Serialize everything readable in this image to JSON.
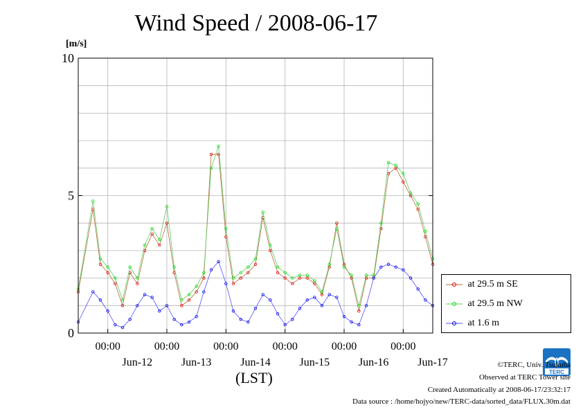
{
  "title": "Wind Speed / 2008-06-17",
  "unit": "[m/s]",
  "xaxis_label": "(LST)",
  "credits": {
    "copyright": "©TERC, Univ. Tsukuba",
    "site": "Observed at TERC Tower site",
    "created": "Created Automatically at 2008-06-17/23:32:17",
    "source": "Data source : /home/hojyo/new/TERC-data/sorted_data/FLUX.30m.dat"
  },
  "logo_text": "TERC",
  "chart_data": {
    "type": "line",
    "title": "Wind Speed / 2008-06-17",
    "ylabel": "[m/s]",
    "xlabel": "(LST)",
    "ylim": [
      0,
      10
    ],
    "yticks": [
      "0",
      "5",
      "10"
    ],
    "xlim_hours": [
      -12,
      132
    ],
    "time_labels": [
      "00:00",
      "00:00",
      "00:00",
      "00:00",
      "00:00",
      "00:00"
    ],
    "day_labels": [
      "Jun-12",
      "Jun-13",
      "Jun-14",
      "Jun-15",
      "Jun-16",
      "Jun-17"
    ],
    "grid": true,
    "legend_position": "bottom-right",
    "series": [
      {
        "name": "at 29.5 m SE",
        "color": "#e00000",
        "line_color": "#b06a3a",
        "x_hours": [
          -12,
          -6,
          -3,
          0,
          3,
          6,
          9,
          12,
          15,
          18,
          21,
          24,
          27,
          30,
          33,
          36,
          39,
          42,
          45,
          48,
          51,
          54,
          57,
          60,
          63,
          66,
          69,
          72,
          75,
          78,
          81,
          84,
          87,
          90,
          93,
          96,
          99,
          102,
          105,
          108,
          111,
          114,
          117,
          120,
          123,
          126,
          129,
          132
        ],
        "values": [
          1.5,
          4.5,
          2.5,
          2.2,
          1.8,
          1.0,
          2.2,
          1.8,
          3.0,
          3.6,
          3.2,
          4.0,
          2.2,
          1.0,
          1.2,
          1.5,
          2.0,
          6.5,
          6.5,
          3.5,
          1.8,
          2.0,
          2.2,
          2.5,
          4.2,
          3.0,
          2.2,
          2.0,
          1.8,
          2.0,
          2.0,
          1.8,
          1.4,
          2.4,
          4.0,
          2.5,
          2.0,
          0.8,
          2.0,
          2.0,
          3.8,
          5.8,
          6.0,
          5.5,
          5.0,
          4.5,
          3.5,
          2.5
        ]
      },
      {
        "name": "at 29.5 m NW",
        "color": "#00e000",
        "line_color": "#60c860",
        "x_hours": [
          -12,
          -6,
          -3,
          0,
          3,
          6,
          9,
          12,
          15,
          18,
          21,
          24,
          27,
          30,
          33,
          36,
          39,
          42,
          45,
          48,
          51,
          54,
          57,
          60,
          63,
          66,
          69,
          72,
          75,
          78,
          81,
          84,
          87,
          90,
          93,
          96,
          99,
          102,
          105,
          108,
          111,
          114,
          117,
          120,
          123,
          126,
          129,
          132
        ],
        "values": [
          1.6,
          4.8,
          2.7,
          2.4,
          2.0,
          1.2,
          2.4,
          2.0,
          3.2,
          3.8,
          3.4,
          4.6,
          2.4,
          1.2,
          1.4,
          1.7,
          2.2,
          6.0,
          6.8,
          3.8,
          2.0,
          2.2,
          2.4,
          2.7,
          4.4,
          3.2,
          2.4,
          2.2,
          2.0,
          2.1,
          2.1,
          1.9,
          1.5,
          2.5,
          3.8,
          2.4,
          2.1,
          1.0,
          2.1,
          2.1,
          4.0,
          6.2,
          6.1,
          5.8,
          5.1,
          4.7,
          3.7,
          2.7
        ]
      },
      {
        "name": "at 1.6 m",
        "color": "#0000e0",
        "line_color": "#5050ff",
        "x_hours": [
          -12,
          -6,
          -3,
          0,
          3,
          6,
          9,
          12,
          15,
          18,
          21,
          24,
          27,
          30,
          33,
          36,
          39,
          42,
          45,
          48,
          51,
          54,
          57,
          60,
          63,
          66,
          69,
          72,
          75,
          78,
          81,
          84,
          87,
          90,
          93,
          96,
          99,
          102,
          105,
          108,
          111,
          114,
          117,
          120,
          123,
          126,
          129,
          132
        ],
        "values": [
          0.4,
          1.5,
          1.2,
          0.8,
          0.3,
          0.2,
          0.5,
          1.0,
          1.4,
          1.3,
          0.8,
          1.0,
          0.5,
          0.3,
          0.4,
          0.6,
          1.5,
          2.3,
          2.6,
          1.8,
          0.8,
          0.5,
          0.4,
          0.9,
          1.4,
          1.2,
          0.7,
          0.3,
          0.5,
          0.9,
          1.2,
          1.3,
          1.0,
          1.4,
          1.3,
          0.6,
          0.4,
          0.3,
          1.0,
          2.0,
          2.4,
          2.5,
          2.4,
          2.3,
          2.0,
          1.6,
          1.2,
          1.0
        ]
      }
    ]
  }
}
